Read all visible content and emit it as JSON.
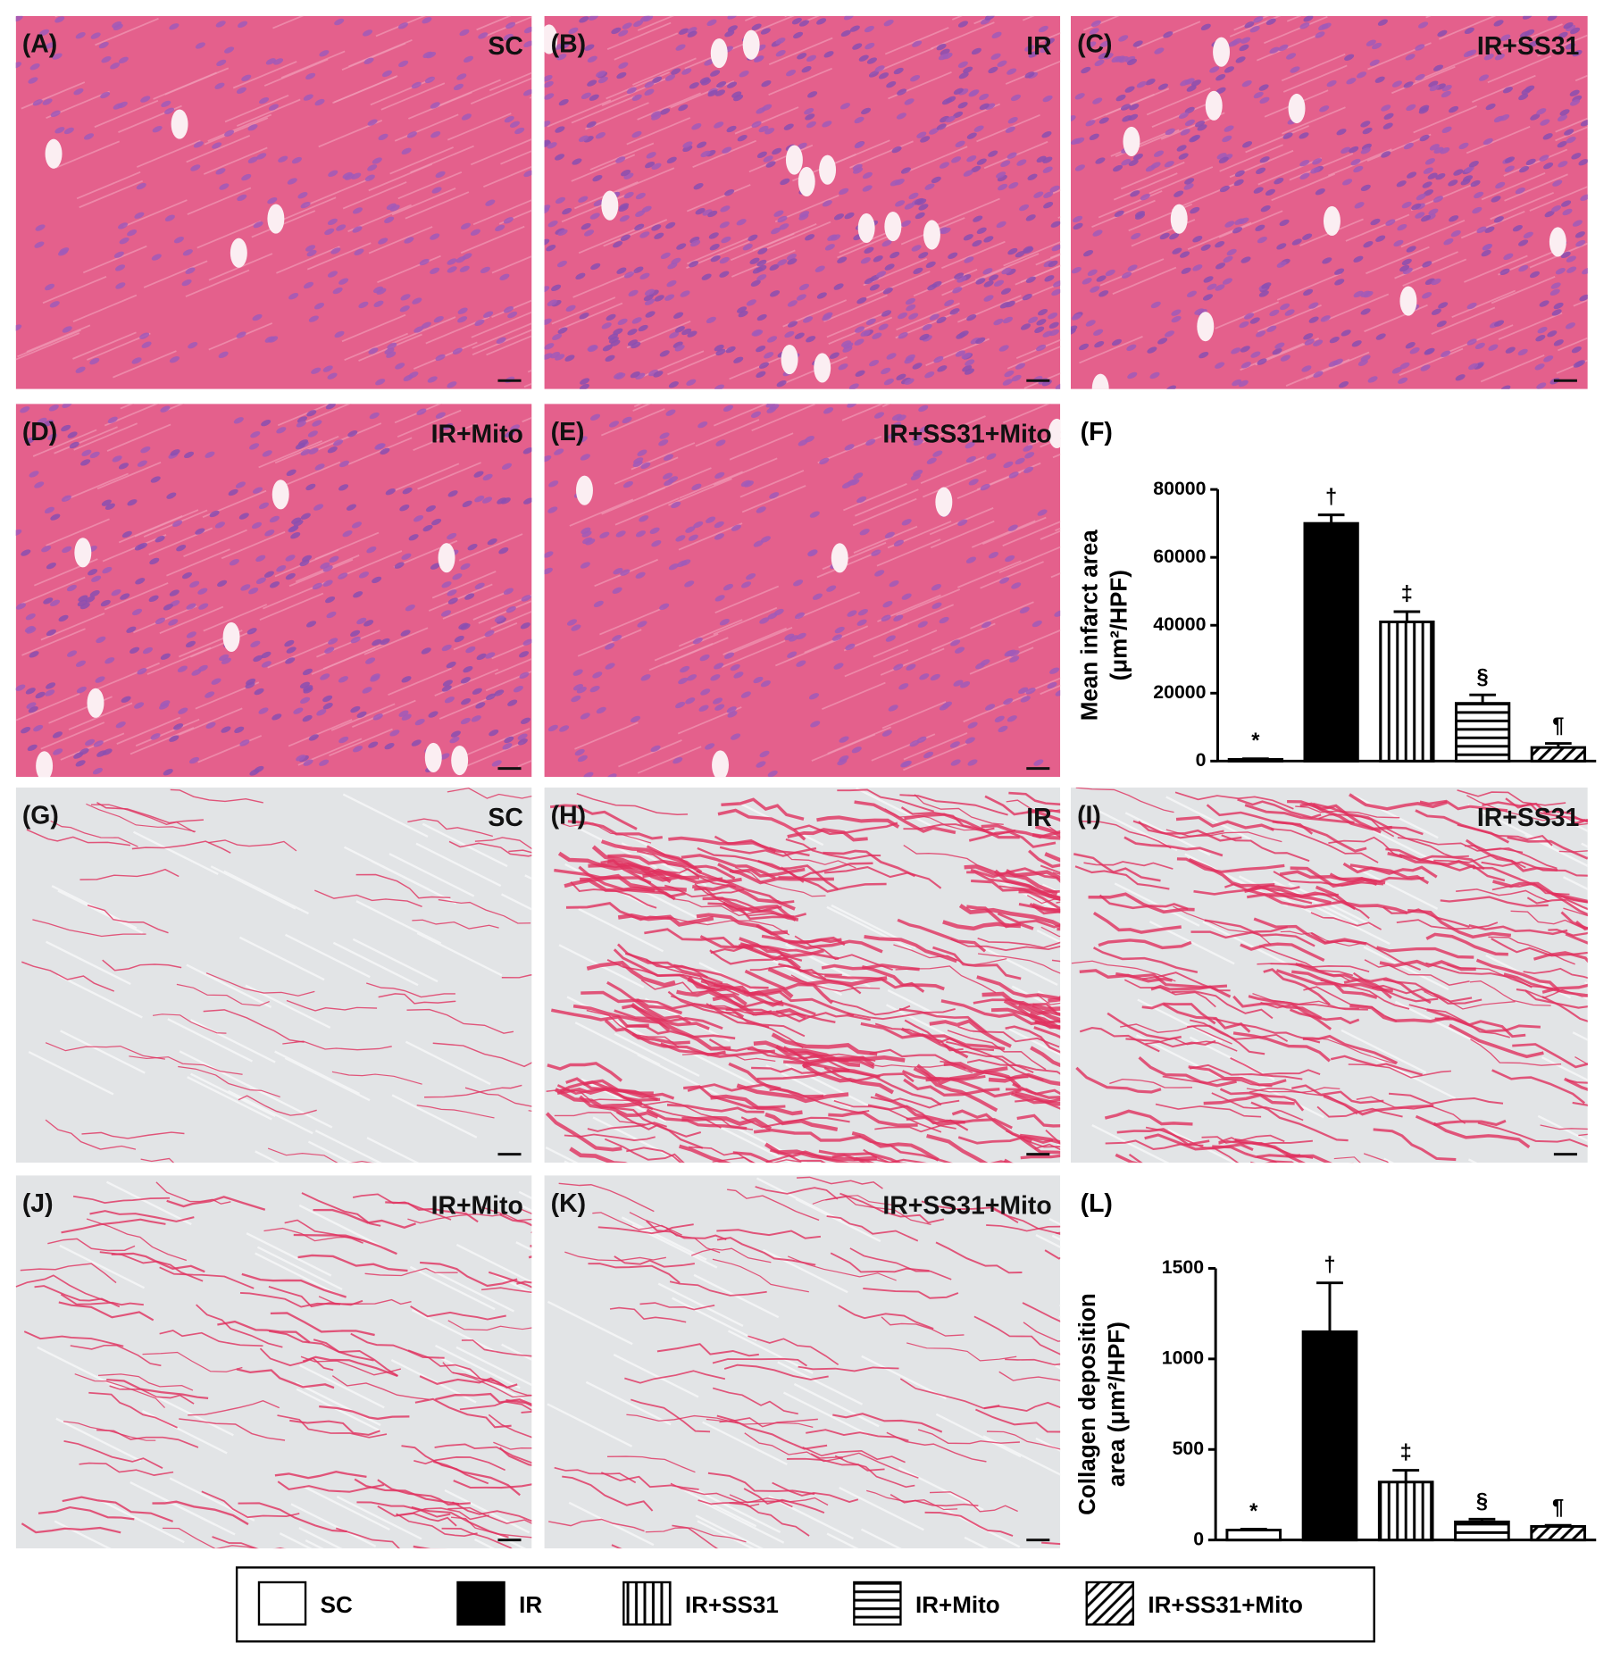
{
  "panels": [
    {
      "label": "(A)",
      "group": "SC"
    },
    {
      "label": "(B)",
      "group": "IR"
    },
    {
      "label": "(C)",
      "group": "IR+SS31"
    },
    {
      "label": "(D)",
      "group": "IR+Mito"
    },
    {
      "label": "(E)",
      "group": "IR+SS31+Mito"
    },
    {
      "label": "(G)",
      "group": "SC"
    },
    {
      "label": "(H)",
      "group": "IR"
    },
    {
      "label": "(I)",
      "group": "IR+SS31"
    },
    {
      "label": "(J)",
      "group": "IR+Mito"
    },
    {
      "label": "(K)",
      "group": "IR+SS31+Mito"
    }
  ],
  "legend": {
    "labels": [
      "SC",
      "IR",
      "IR+SS31",
      "IR+Mito",
      "IR+SS31+Mito"
    ],
    "patterns": [
      "white",
      "black",
      "vertical",
      "horizontal",
      "diagonal"
    ]
  },
  "chart_data": [
    {
      "type": "bar",
      "panel_label": "(F)",
      "y_label": [
        "Mean infarct area",
        "(μm²/HPF)"
      ],
      "values": [
        500,
        70000,
        41000,
        17000,
        4000
      ],
      "errors": [
        200,
        2500,
        3000,
        2500,
        1200
      ],
      "annotations": [
        "*",
        "†",
        "‡",
        "§",
        "¶"
      ],
      "ylim": [
        0,
        80000
      ],
      "yticks": [
        0,
        20000,
        40000,
        60000,
        80000
      ]
    },
    {
      "type": "bar",
      "panel_label": "(L)",
      "y_label": [
        "Collagen deposition",
        "area (μm²/HPF)"
      ],
      "values": [
        55,
        1150,
        320,
        100,
        75
      ],
      "errors": [
        5,
        270,
        65,
        15,
        6
      ],
      "annotations": [
        "*",
        "†",
        "‡",
        "§",
        "¶"
      ],
      "ylim": [
        0,
        1500
      ],
      "yticks": [
        0,
        500,
        1000,
        1500
      ]
    }
  ]
}
